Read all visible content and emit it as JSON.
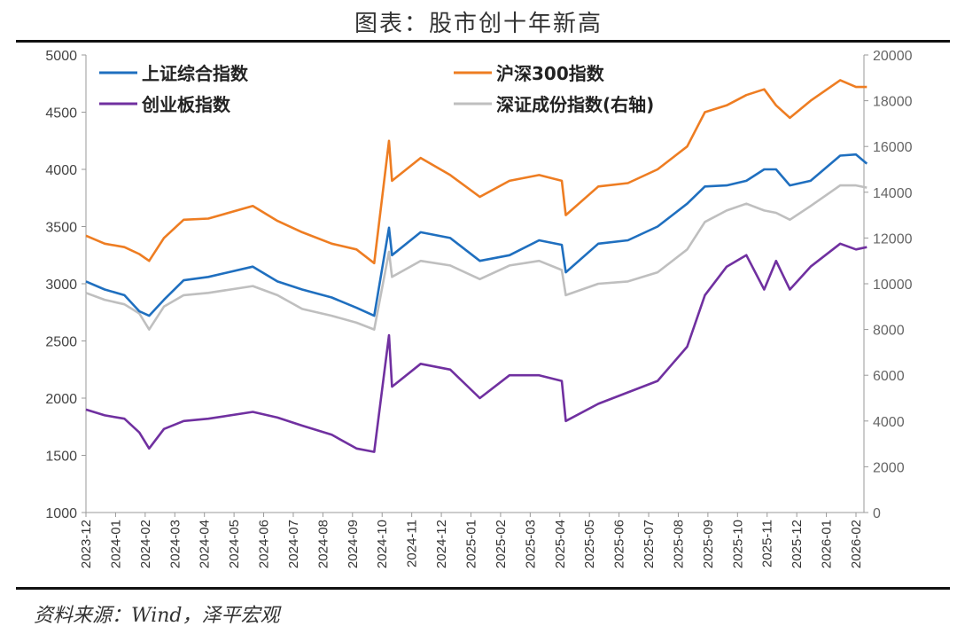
{
  "header": {
    "title": "图表：股市创十年新高"
  },
  "footer": {
    "source": "资料来源：Wind，泽平宏观"
  },
  "chart_data": {
    "type": "line",
    "title": "图表：股市创十年新高",
    "x_ticks": [
      "2023-12",
      "2024-01",
      "2024-02",
      "2024-03",
      "2024-04",
      "2024-05",
      "2024-06",
      "2024-07",
      "2024-08",
      "2024-09",
      "2024-10",
      "2024-11",
      "2024-12",
      "2025-01",
      "2025-02",
      "2025-03",
      "2025-04",
      "2025-05",
      "2025-06",
      "2025-07",
      "2025-08",
      "2025-09",
      "2025-10",
      "2025-11",
      "2025-12",
      "2026-01",
      "2026-02"
    ],
    "y_left": {
      "range": [
        1000,
        5000
      ],
      "ticks": [
        1000,
        1500,
        2000,
        2500,
        3000,
        3500,
        4000,
        4500,
        5000
      ]
    },
    "y_right": {
      "range": [
        0,
        20000
      ],
      "ticks": [
        0,
        2000,
        4000,
        6000,
        8000,
        10000,
        12000,
        14000,
        16000,
        18000,
        20000
      ]
    },
    "grid": false,
    "legend": "top",
    "dates": [
      "2023-12-01",
      "2023-12-20",
      "2024-01-10",
      "2024-01-25",
      "2024-02-05",
      "2024-02-20",
      "2024-03-10",
      "2024-04-05",
      "2024-05-20",
      "2024-06-15",
      "2024-07-10",
      "2024-08-10",
      "2024-09-05",
      "2024-09-23",
      "2024-10-08",
      "2024-10-11",
      "2024-11-10",
      "2024-12-10",
      "2025-01-10",
      "2025-02-10",
      "2025-03-10",
      "2025-04-03",
      "2025-04-07",
      "2025-05-10",
      "2025-06-10",
      "2025-07-10",
      "2025-08-10",
      "2025-08-28",
      "2025-09-20",
      "2025-10-10",
      "2025-10-28",
      "2025-11-10",
      "2025-11-24",
      "2025-12-15",
      "2026-01-15",
      "2026-02-01",
      "2026-02-12"
    ],
    "series": [
      {
        "name": "上证综合指数",
        "axis": "left",
        "color": "#1f6fbf",
        "values": [
          3020,
          2950,
          2900,
          2760,
          2720,
          2860,
          3030,
          3060,
          3150,
          3020,
          2950,
          2880,
          2790,
          2720,
          3490,
          3250,
          3450,
          3400,
          3200,
          3250,
          3380,
          3340,
          3100,
          3350,
          3380,
          3500,
          3700,
          3850,
          3860,
          3900,
          4000,
          4000,
          3860,
          3900,
          4120,
          4130,
          4050
        ]
      },
      {
        "name": "沪深300指数",
        "axis": "left",
        "color": "#ee7d22",
        "values": [
          3420,
          3350,
          3320,
          3260,
          3200,
          3400,
          3560,
          3570,
          3680,
          3550,
          3450,
          3350,
          3300,
          3180,
          4250,
          3900,
          4100,
          3950,
          3760,
          3900,
          3950,
          3900,
          3600,
          3850,
          3880,
          4000,
          4200,
          4500,
          4560,
          4650,
          4700,
          4560,
          4450,
          4600,
          4780,
          4720,
          4720
        ]
      },
      {
        "name": "创业板指数",
        "axis": "left",
        "color": "#7030a0",
        "values": [
          1900,
          1850,
          1820,
          1700,
          1560,
          1730,
          1800,
          1820,
          1880,
          1830,
          1760,
          1680,
          1560,
          1530,
          2550,
          2100,
          2300,
          2250,
          2000,
          2200,
          2200,
          2150,
          1800,
          1950,
          2050,
          2150,
          2450,
          2900,
          3150,
          3250,
          2950,
          3200,
          2950,
          3150,
          3350,
          3300,
          3320
        ]
      },
      {
        "name": "深证成份指数(右轴)",
        "axis": "right",
        "color": "#bfbfbf",
        "values": [
          9600,
          9300,
          9100,
          8700,
          8000,
          9000,
          9500,
          9600,
          9900,
          9500,
          8900,
          8600,
          8300,
          8000,
          11400,
          10300,
          11000,
          10800,
          10200,
          10800,
          11000,
          10600,
          9500,
          10000,
          10100,
          10500,
          11500,
          12700,
          13200,
          13500,
          13200,
          13100,
          12800,
          13400,
          14300,
          14300,
          14200
        ]
      }
    ]
  }
}
